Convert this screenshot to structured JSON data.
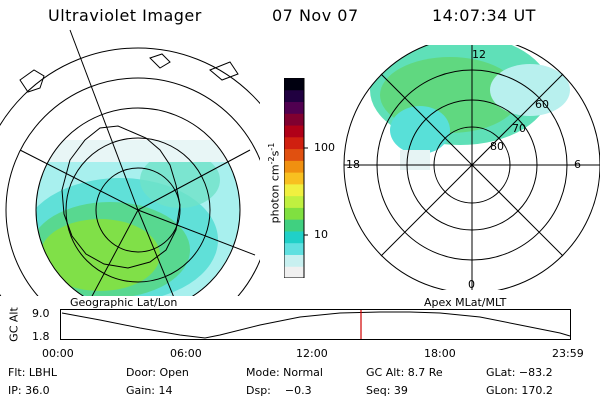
{
  "header": {
    "instrument": "Ultraviolet Imager",
    "date": "07 Nov 07",
    "time": "14:07:34 UT"
  },
  "left_panel": {
    "label": "Geographic Lat/Lon"
  },
  "right_panel": {
    "label": "Apex MLat/MLT",
    "mlt_labels": [
      "12",
      "18",
      "6",
      "0"
    ],
    "mlat_labels": [
      "60",
      "70",
      "80"
    ]
  },
  "colorbar": {
    "unit_label": "photon cm",
    "unit_exp1": "-2",
    "unit_s": "s",
    "unit_exp2": "-1",
    "tick_labels": [
      "100",
      "10"
    ],
    "colors": [
      "#f0f0f0",
      "#c8f0f0",
      "#60e0e0",
      "#20d0c8",
      "#40d080",
      "#80e040",
      "#c0f040",
      "#f0f040",
      "#f8c020",
      "#f09010",
      "#e05010",
      "#d02010",
      "#b00018",
      "#800030",
      "#500050",
      "#200040",
      "#000010"
    ]
  },
  "orbit_strip": {
    "axis_label": "GC Alt",
    "y_labels": [
      "9.0",
      "1.8"
    ],
    "x_labels": [
      "00:00",
      "06:00",
      "12:00",
      "18:00",
      "23:59"
    ],
    "current_marker_color": "#d00000"
  },
  "footer": {
    "filter": "Flt: LBHL",
    "door": "Door: Open",
    "mode": "Mode: Normal",
    "gc_alt": "GC Alt: 8.7 Re",
    "glat": "GLat: −83.2",
    "ip": "IP: 36.0",
    "gain": "Gain: 14",
    "dsp": "Dsp:    −0.3",
    "seq": "Seq: 39",
    "glon": "GLon: 170.2"
  }
}
